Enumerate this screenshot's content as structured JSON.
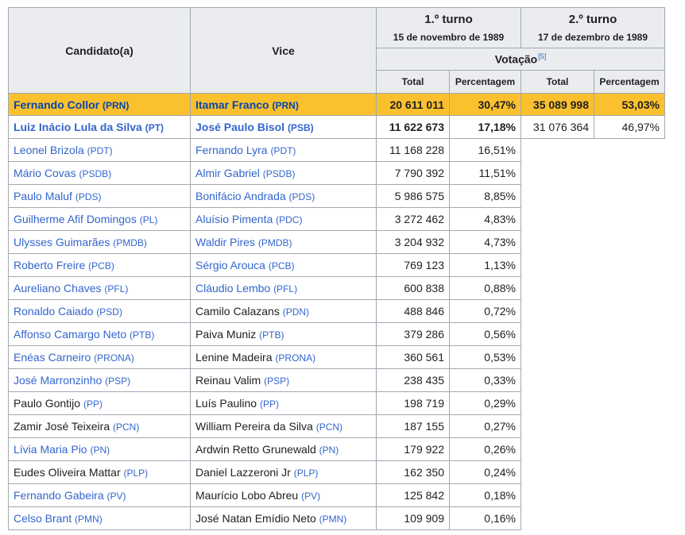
{
  "headers": {
    "candidate": "Candidato(a)",
    "vice": "Vice",
    "round1_title": "1.º turno",
    "round1_date": "15 de novembro de 1989",
    "round2_title": "2.º turno",
    "round2_date": "17 de dezembro de 1989",
    "votes": "Votação",
    "votes_ref": "[5]",
    "total": "Total",
    "percent": "Percentagem"
  },
  "rows": [
    {
      "candidate": "Fernando Collor",
      "cand_party": "(PRN)",
      "vice": "Itamar Franco",
      "vice_party": "(PRN)",
      "r1_total": "20 611 011",
      "r1_pct": "30,47%",
      "r2_total": "35 089 998",
      "r2_pct": "53,03%"
    },
    {
      "candidate": "Luiz Inácio Lula da Silva",
      "cand_party": "(PT)",
      "vice": "José Paulo Bisol",
      "vice_party": "(PSB)",
      "r1_total": "11 622 673",
      "r1_pct": "17,18%",
      "r2_total": "31 076 364",
      "r2_pct": "46,97%"
    },
    {
      "candidate": "Leonel Brizola",
      "cand_party": "(PDT)",
      "vice": "Fernando Lyra",
      "vice_party": "(PDT)",
      "r1_total": "11 168 228",
      "r1_pct": "16,51%"
    },
    {
      "candidate": "Mário Covas",
      "cand_party": "(PSDB)",
      "vice": "Almir Gabriel",
      "vice_party": "(PSDB)",
      "r1_total": "7 790 392",
      "r1_pct": "11,51%"
    },
    {
      "candidate": "Paulo Maluf",
      "cand_party": "(PDS)",
      "vice": "Bonifácio Andrada",
      "vice_party": "(PDS)",
      "r1_total": "5 986 575",
      "r1_pct": "8,85%"
    },
    {
      "candidate": "Guilherme Afif Domingos",
      "cand_party": "(PL)",
      "vice": "Aluísio Pimenta",
      "vice_party": "(PDC)",
      "r1_total": "3 272 462",
      "r1_pct": "4,83%"
    },
    {
      "candidate": "Ulysses Guimarães",
      "cand_party": "(PMDB)",
      "vice": "Waldir Pires",
      "vice_party": "(PMDB)",
      "r1_total": "3 204 932",
      "r1_pct": "4,73%"
    },
    {
      "candidate": "Roberto Freire",
      "cand_party": "(PCB)",
      "vice": "Sérgio Arouca",
      "vice_party": "(PCB)",
      "r1_total": "769 123",
      "r1_pct": "1,13%"
    },
    {
      "candidate": "Aureliano Chaves",
      "cand_party": "(PFL)",
      "vice": "Cláudio Lembo",
      "vice_party": "(PFL)",
      "r1_total": "600 838",
      "r1_pct": "0,88%"
    },
    {
      "candidate": "Ronaldo Caiado",
      "cand_party": "(PSD)",
      "vice": "Camilo Calazans",
      "vice_party": "(PDN)",
      "r1_total": "488 846",
      "r1_pct": "0,72%"
    },
    {
      "candidate": "Affonso Camargo Neto",
      "cand_party": "(PTB)",
      "vice": "Paiva Muniz",
      "vice_party": "(PTB)",
      "r1_total": "379 286",
      "r1_pct": "0,56%"
    },
    {
      "candidate": "Enéas Carneiro",
      "cand_party": "(PRONA)",
      "vice": "Lenine Madeira",
      "vice_party": "(PRONA)",
      "r1_total": "360 561",
      "r1_pct": "0,53%"
    },
    {
      "candidate": "José Marronzinho",
      "cand_party": "(PSP)",
      "vice": "Reinau Valim",
      "vice_party": "(PSP)",
      "r1_total": "238 435",
      "r1_pct": "0,33%"
    },
    {
      "candidate": "Paulo Gontijo",
      "cand_party": "(PP)",
      "vice": "Luís Paulino",
      "vice_party": "(PP)",
      "r1_total": "198 719",
      "r1_pct": "0,29%"
    },
    {
      "candidate": "Zamir José Teixeira",
      "cand_party": "(PCN)",
      "vice": "William Pereira da Silva",
      "vice_party": "(PCN)",
      "r1_total": "187 155",
      "r1_pct": "0,27%"
    },
    {
      "candidate": "Lívia Maria Pio",
      "cand_party": "(PN)",
      "vice": "Ardwin Retto Grunewald",
      "vice_party": "(PN)",
      "r1_total": "179 922",
      "r1_pct": "0,26%"
    },
    {
      "candidate": "Eudes Oliveira Mattar",
      "cand_party": "(PLP)",
      "vice": "Daniel Lazzeroni Jr",
      "vice_party": "(PLP)",
      "r1_total": "162 350",
      "r1_pct": "0,24%"
    },
    {
      "candidate": "Fernando Gabeira",
      "cand_party": "(PV)",
      "vice": "Maurício Lobo Abreu",
      "vice_party": "(PV)",
      "r1_total": "125 842",
      "r1_pct": "0,18%"
    },
    {
      "candidate": "Celso Brant",
      "cand_party": "(PMN)",
      "vice": "José Natan Emídio Neto",
      "vice_party": "(PMN)",
      "r1_total": "109 909",
      "r1_pct": "0,16%"
    }
  ]
}
